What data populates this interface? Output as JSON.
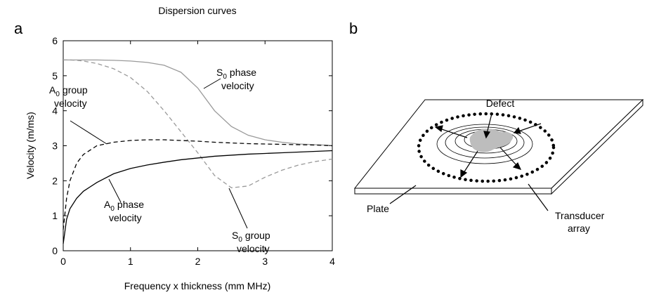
{
  "chart_data": {
    "type": "line",
    "panel_label": "a",
    "title": "Dispersion curves",
    "xlabel": "Frequency x thickness (mm MHz)",
    "ylabel": "Velocity (m/ms)",
    "xlim": [
      0,
      4
    ],
    "ylim": [
      0,
      6
    ],
    "xticks": [
      0,
      1,
      2,
      3,
      4
    ],
    "yticks": [
      0,
      1,
      2,
      3,
      4,
      5,
      6
    ],
    "x": [
      0,
      0.05,
      0.1,
      0.2,
      0.3,
      0.5,
      0.75,
      1,
      1.25,
      1.5,
      1.75,
      2,
      2.25,
      2.5,
      2.75,
      3,
      3.25,
      3.5,
      3.75,
      4
    ],
    "series": [
      {
        "color": "#9a9a9a",
        "dashed": false,
        "values": [
          5.45,
          5.45,
          5.45,
          5.45,
          5.45,
          5.45,
          5.44,
          5.42,
          5.38,
          5.3,
          5.1,
          4.65,
          4.0,
          3.55,
          3.3,
          3.17,
          3.1,
          3.05,
          3.03,
          3.01
        ]
      },
      {
        "color": "#9a9a9a",
        "dashed": true,
        "values": [
          5.45,
          5.45,
          5.45,
          5.44,
          5.42,
          5.35,
          5.2,
          4.95,
          4.55,
          4.0,
          3.4,
          2.8,
          2.15,
          1.8,
          1.85,
          2.1,
          2.3,
          2.45,
          2.55,
          2.62
        ]
      },
      {
        "color": "#000000",
        "dashed": true,
        "values": [
          0.6,
          1.5,
          2.0,
          2.5,
          2.75,
          3.0,
          3.1,
          3.15,
          3.17,
          3.17,
          3.15,
          3.13,
          3.1,
          3.08,
          3.06,
          3.05,
          3.04,
          3.03,
          3.02,
          3.0
        ]
      },
      {
        "color": "#000000",
        "dashed": false,
        "values": [
          0.2,
          0.9,
          1.2,
          1.5,
          1.7,
          1.95,
          2.2,
          2.35,
          2.45,
          2.53,
          2.6,
          2.65,
          2.7,
          2.73,
          2.76,
          2.78,
          2.8,
          2.82,
          2.84,
          2.86
        ]
      }
    ],
    "annotations": [
      {
        "symbol": "S",
        "subscript": "0",
        "line1": "phase",
        "line2": "velocity"
      },
      {
        "symbol": "S",
        "subscript": "0",
        "line1": "group",
        "line2": "velocity"
      },
      {
        "symbol": "A",
        "subscript": "0",
        "line1": "group",
        "line2": "velocity"
      },
      {
        "symbol": "A",
        "subscript": "0",
        "line1": "phase",
        "line2": "velocity"
      }
    ]
  },
  "diagram": {
    "panel_label": "b",
    "defect": "Defect",
    "plate": "Plate",
    "transducer": [
      "Transducer",
      "array"
    ]
  }
}
